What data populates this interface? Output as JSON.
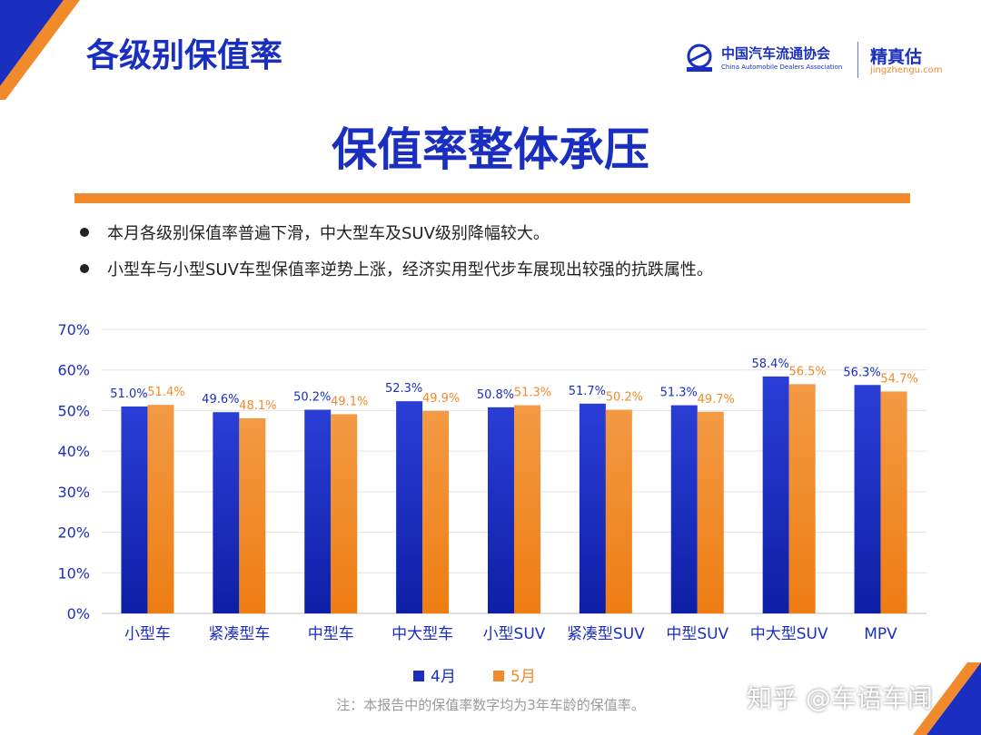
{
  "page": {
    "title": "各级别保值率",
    "headline": "保值率整体承压",
    "bullets": [
      "本月各级别保值率普遍下滑，中大型车及SUV级别降幅较大。",
      "小型车与小型SUV车型保值率逆势上涨，经济实用型代步车展现出较强的抗跌属性。"
    ],
    "note": "注：本报告中的保值率数字均为3年车龄的保值率。",
    "watermark": "知乎 @车语车闻"
  },
  "logo": {
    "org_cn": "中国汽车流通协会",
    "org_en": "China Automobile Dealers Association",
    "brand": "精真估",
    "brand_url": "jingzhengu.com"
  },
  "colors": {
    "blue": "#1a2fc0",
    "orange": "#f08a2a"
  },
  "chart_data": {
    "type": "bar",
    "categories": [
      "小型车",
      "紧凑型车",
      "中型车",
      "中大型车",
      "小型SUV",
      "紧凑型SUV",
      "中型SUV",
      "中大型SUV",
      "MPV"
    ],
    "series": [
      {
        "name": "4月",
        "values": [
          51.0,
          49.6,
          50.2,
          52.3,
          50.8,
          51.7,
          51.3,
          58.4,
          56.3
        ],
        "labels": [
          "51.0%",
          "49.6%",
          "50.2%",
          "52.3%",
          "50.8%",
          "51.7%",
          "51.3%",
          "58.4%",
          "56.3%"
        ]
      },
      {
        "name": "5月",
        "values": [
          51.4,
          48.1,
          49.1,
          49.9,
          51.3,
          50.2,
          49.7,
          56.5,
          54.7
        ],
        "labels": [
          "51.4%",
          "48.1%",
          "49.1%",
          "49.9%",
          "51.3%",
          "50.2%",
          "49.7%",
          "56.5%",
          "54.7%"
        ]
      }
    ],
    "ylim": [
      0,
      70
    ],
    "yticks": [
      "0%",
      "10%",
      "20%",
      "30%",
      "40%",
      "50%",
      "60%",
      "70%"
    ],
    "grid": true,
    "legend": "bottom"
  }
}
